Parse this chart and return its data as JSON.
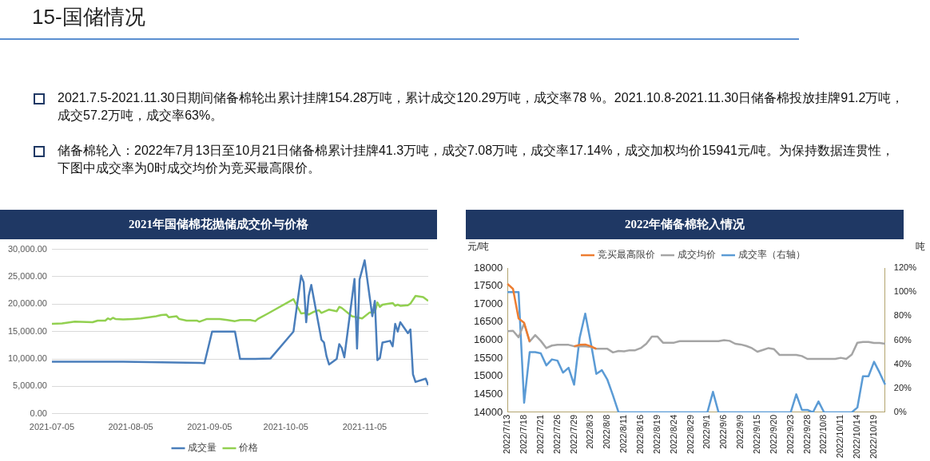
{
  "chart_data": [
    {
      "type": "other",
      "title": "15-国储情况",
      "annotations": [
        "2021.7.5-2021.11.30日期间储备棉轮出累计挂牌154.28万吨，累计成交120.29万吨，成交率78 %。2021.10.8-2021.11.30日储备棉投放挂牌91.2万吨，成交57.2万吨，成交率63%。",
        "储备棉轮入：2022年7月13日至10月21日储备棉累计挂牌41.3万吨，成交7.08万吨，成交率17.14%，成交加权均价15941元/吨。为保持数据连贯性，下图中成交率为0时成交均价为竞买最高限价。"
      ]
    },
    {
      "type": "line",
      "title": "2021年国储棉花抛储成交价与价格",
      "xlim": [
        "2021-07-05",
        "2021-11-30"
      ],
      "xticks": [
        "2021-07-05",
        "2021-08-05",
        "2021-09-05",
        "2021-10-05",
        "2021-11-05"
      ],
      "ylim": [
        0,
        30000
      ],
      "yticks": [
        {
          "value": 0,
          "label": "0.00"
        },
        {
          "value": 5000,
          "label": "5,000.00"
        },
        {
          "value": 10000,
          "label": "10,000.00"
        },
        {
          "value": 15000,
          "label": "15,000.00"
        },
        {
          "value": 20000,
          "label": "20,000.00"
        },
        {
          "value": 25000,
          "label": "25,000.00"
        },
        {
          "value": 30000,
          "label": "30,000.00"
        }
      ],
      "grid": "y",
      "legend": "bottom",
      "series": [
        {
          "name": "成交量",
          "color": "#4a7ebb",
          "x": [
            "2021-07-05",
            "2021-08-02",
            "2021-09-01",
            "2021-09-03",
            "2021-09-06",
            "2021-09-15",
            "2021-09-17",
            "2021-09-23",
            "2021-09-29",
            "2021-10-08",
            "2021-10-11",
            "2021-10-12",
            "2021-10-13",
            "2021-10-14",
            "2021-10-15",
            "2021-10-19",
            "2021-10-20",
            "2021-10-21",
            "2021-10-22",
            "2021-10-25",
            "2021-10-26",
            "2021-10-27",
            "2021-10-28",
            "2021-11-01",
            "2021-11-02",
            "2021-11-03",
            "2021-11-05",
            "2021-11-08",
            "2021-11-09",
            "2021-11-10",
            "2021-11-11",
            "2021-11-12",
            "2021-11-15",
            "2021-11-16",
            "2021-11-17",
            "2021-11-18",
            "2021-11-19",
            "2021-11-22",
            "2021-11-23",
            "2021-11-24",
            "2021-11-25",
            "2021-11-29",
            "2021-11-30"
          ],
          "values": [
            9500,
            9500,
            9300,
            9200,
            15000,
            15000,
            10000,
            10000,
            10100,
            15000,
            25200,
            24000,
            16700,
            21500,
            23500,
            13500,
            13000,
            10500,
            9000,
            10000,
            12700,
            12000,
            10300,
            24600,
            11900,
            24500,
            28000,
            17800,
            20600,
            9800,
            10200,
            13000,
            13300,
            12300,
            16400,
            15000,
            16700,
            14700,
            15400,
            7200,
            5800,
            6400,
            5200
          ]
        },
        {
          "name": "价格",
          "color": "#92d050",
          "x": [
            "2021-07-05",
            "2021-07-09",
            "2021-07-14",
            "2021-07-21",
            "2021-07-23",
            "2021-07-26",
            "2021-07-27",
            "2021-07-28",
            "2021-07-29",
            "2021-07-30",
            "2021-08-02",
            "2021-08-06",
            "2021-08-09",
            "2021-08-15",
            "2021-08-17",
            "2021-08-19",
            "2021-08-20",
            "2021-08-23",
            "2021-08-24",
            "2021-08-27",
            "2021-08-31",
            "2021-09-01",
            "2021-09-04",
            "2021-09-09",
            "2021-09-12",
            "2021-09-15",
            "2021-09-17",
            "2021-09-21",
            "2021-09-23",
            "2021-09-24",
            "2021-09-28",
            "2021-10-08",
            "2021-10-11",
            "2021-10-13",
            "2021-10-14",
            "2021-10-16",
            "2021-10-18",
            "2021-10-19",
            "2021-10-22",
            "2021-10-25",
            "2021-10-26",
            "2021-10-27",
            "2021-10-31",
            "2021-11-04",
            "2021-11-07",
            "2021-11-09",
            "2021-11-10",
            "2021-11-11",
            "2021-11-12",
            "2021-11-16",
            "2021-11-17",
            "2021-11-18",
            "2021-11-19",
            "2021-11-22",
            "2021-11-23",
            "2021-11-25",
            "2021-11-28",
            "2021-11-30"
          ],
          "values": [
            16400,
            16500,
            16800,
            16700,
            17000,
            17000,
            17400,
            17200,
            17500,
            17300,
            17200,
            17300,
            17400,
            17800,
            18000,
            18100,
            17600,
            17800,
            17300,
            17000,
            17000,
            16800,
            17300,
            17300,
            17100,
            16900,
            17100,
            17100,
            16900,
            17300,
            18300,
            20900,
            18300,
            18400,
            18100,
            18600,
            18900,
            18400,
            19000,
            18700,
            19500,
            19300,
            17800,
            17400,
            18500,
            18500,
            20300,
            19500,
            19900,
            20200,
            19700,
            19900,
            19700,
            19800,
            20100,
            21500,
            21300,
            20600
          ]
        }
      ]
    },
    {
      "type": "line",
      "title": "2022年储备棉轮入情况",
      "ylabel": "元/吨",
      "y2label": "吨",
      "categories": [
        "2022/7/13",
        null,
        null,
        "2022/7/18",
        null,
        null,
        "2022/7/21",
        null,
        null,
        "2022/7/26",
        null,
        null,
        "2022/7/29",
        null,
        null,
        "2022/8/3",
        null,
        null,
        "2022/8/8",
        null,
        null,
        "2022/8/11",
        null,
        null,
        "2022/8/16",
        null,
        null,
        "2022/8/19",
        null,
        null,
        "2022/8/24",
        null,
        null,
        "2022/8/29",
        null,
        null,
        "2022/9/1",
        null,
        null,
        "2022/9/6",
        null,
        null,
        "2022/9/9",
        null,
        null,
        "2022/9/15",
        null,
        null,
        "2022/9/20",
        null,
        null,
        "2022/9/23",
        null,
        null,
        "2022/9/28",
        null,
        null,
        "2022/10/8",
        null,
        null,
        "2022/10/11",
        null,
        null,
        "2022/10/14",
        null,
        null,
        "2022/10/19",
        null,
        null
      ],
      "ylim": [
        14000,
        18000
      ],
      "yticks": [
        14000,
        14500,
        15000,
        15500,
        16000,
        16500,
        17000,
        17500,
        18000
      ],
      "y2lim": [
        0,
        120
      ],
      "y2ticks": [
        {
          "value": 0,
          "label": "0%"
        },
        {
          "value": 20,
          "label": "20%"
        },
        {
          "value": 40,
          "label": "40%"
        },
        {
          "value": 60,
          "label": "60%"
        },
        {
          "value": 80,
          "label": "80%"
        },
        {
          "value": 100,
          "label": "100%"
        },
        {
          "value": 120,
          "label": "120%"
        }
      ],
      "legend": "top",
      "series": [
        {
          "name": "竞买最高限价",
          "color": "#ed7d31",
          "values": [
            17560,
            17420,
            16600,
            16480,
            15960,
            null,
            null,
            null,
            null,
            null,
            null,
            null,
            15830,
            15870,
            15880,
            15830,
            15760,
            null,
            null,
            null,
            null,
            null,
            null,
            null,
            null,
            null,
            null,
            null,
            null,
            null,
            null,
            null,
            null,
            null,
            null,
            null,
            null,
            null,
            null,
            null,
            null,
            null,
            null,
            null,
            null,
            null,
            null,
            null,
            null,
            null,
            null,
            null,
            null,
            null,
            null,
            null,
            null,
            null,
            null,
            null,
            null,
            null,
            null,
            null,
            null,
            null,
            null,
            null,
            null
          ]
        },
        {
          "name": "成交均价",
          "color": "#a5a5a5",
          "values": [
            16250,
            16260,
            16080,
            16460,
            15960,
            16140,
            15980,
            15780,
            15850,
            15870,
            15870,
            15870,
            15830,
            15830,
            15830,
            15810,
            15760,
            15760,
            15760,
            15660,
            15700,
            15690,
            15720,
            15720,
            15780,
            15900,
            16100,
            16100,
            15930,
            15930,
            15930,
            15970,
            15970,
            15970,
            15970,
            15970,
            15970,
            15970,
            15970,
            16000,
            15980,
            15900,
            15880,
            15840,
            15780,
            15680,
            15730,
            15780,
            15750,
            15590,
            15590,
            15590,
            15590,
            15560,
            15480,
            15480,
            15480,
            15480,
            15480,
            15480,
            15510,
            15480,
            15600,
            15930,
            15950,
            15950,
            15920,
            15920,
            15900
          ]
        },
        {
          "name": "成交率（右轴）",
          "color": "#5b9bd5",
          "axis": "y2",
          "values": [
            100,
            100,
            100,
            8,
            50,
            50,
            49,
            39,
            44,
            43,
            33,
            37,
            23,
            62,
            82,
            58,
            32,
            35,
            27,
            14,
            0,
            0,
            0,
            0,
            0,
            0,
            0,
            0,
            0,
            0,
            0,
            0,
            0,
            0,
            0,
            0,
            0,
            17,
            0,
            0,
            0,
            0,
            0,
            0,
            0,
            0,
            0,
            0,
            0,
            0,
            0,
            0,
            15,
            2,
            2,
            0,
            9,
            0,
            0,
            0,
            0,
            0,
            0,
            4,
            30,
            30,
            42,
            33,
            23
          ]
        }
      ]
    }
  ]
}
